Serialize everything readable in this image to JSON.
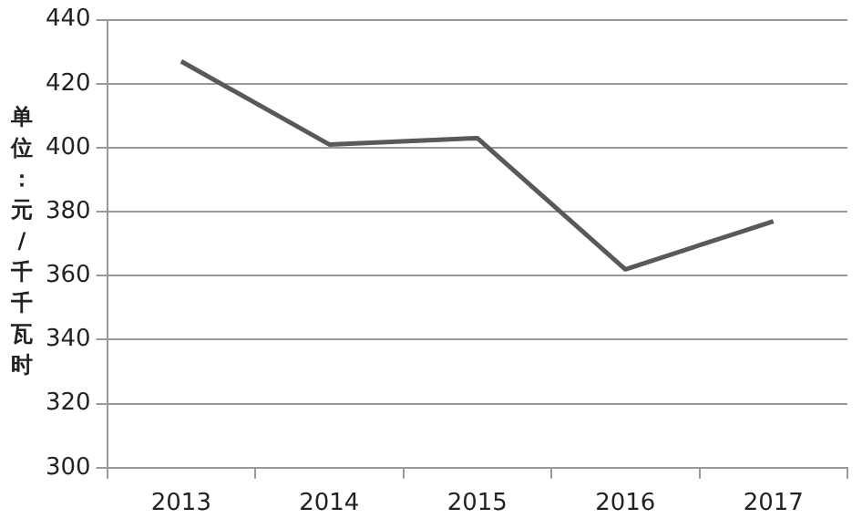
{
  "chart_data": {
    "type": "line",
    "ylabel": "单位：元/千千瓦时",
    "categories": [
      "2013",
      "2014",
      "2015",
      "2016",
      "2017"
    ],
    "series": [
      {
        "color": "#595959",
        "values": [
          427,
          401,
          403,
          362,
          377
        ]
      }
    ],
    "ylim": [
      300,
      440
    ],
    "yticks": [
      300,
      320,
      340,
      360,
      380,
      400,
      420,
      440
    ],
    "grid": "y",
    "legend": false,
    "marker": "none",
    "line_style": "solid"
  }
}
